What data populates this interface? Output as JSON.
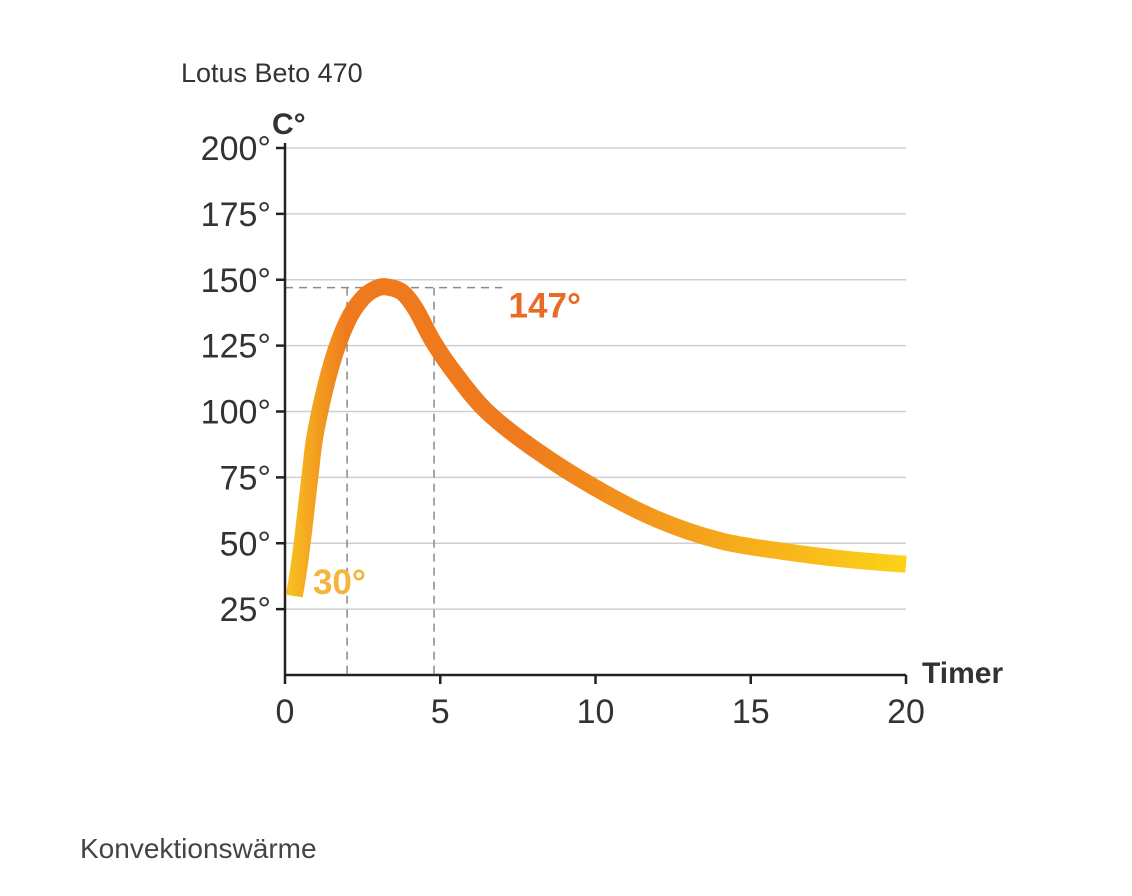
{
  "caption": "Konvektionswärme",
  "colors": {
    "axis": "#222222",
    "grid": "#cfcfcf",
    "guide": "#8a8a8a",
    "curve_start": "#f8c421",
    "curve_peak": "#ee7a1d",
    "curve_end": "#fcd219",
    "peak_label": "#e96a25",
    "start_label": "#f4b53a",
    "text": "#333333"
  },
  "chart_data": {
    "type": "line",
    "title": "Lotus Beto 470",
    "xlabel": "Timer",
    "ylabel": "C°",
    "xlim": [
      0,
      20
    ],
    "ylim": [
      0,
      200
    ],
    "x_ticks": [
      0,
      5,
      10,
      15,
      20
    ],
    "x_tick_labels": [
      "0",
      "5",
      "10",
      "15",
      "20"
    ],
    "y_ticks": [
      25,
      50,
      75,
      100,
      125,
      150,
      175,
      200
    ],
    "y_tick_labels": [
      "25°",
      "50°",
      "75°",
      "100°",
      "125°",
      "150°",
      "175°",
      "200°"
    ],
    "grid": true,
    "x": [
      0.3,
      0.5,
      0.8,
      1.0,
      1.5,
      2.0,
      2.5,
      3.0,
      3.4,
      3.8,
      4.2,
      4.8,
      5.5,
      6.5,
      8.0,
      10.0,
      12.0,
      14.0,
      16.0,
      18.0,
      20.0
    ],
    "y": [
      30,
      45,
      75,
      93,
      118,
      134,
      143,
      147,
      147,
      145,
      139,
      126,
      114,
      100,
      86,
      71,
      59,
      51,
      47,
      44,
      42
    ],
    "annotations": [
      {
        "text": "147°",
        "x": 7.2,
        "y": 141,
        "kind": "peak"
      },
      {
        "text": "30°",
        "x": 0.9,
        "y": 36,
        "kind": "start"
      }
    ],
    "guides": {
      "peak_y": 147,
      "x_values": [
        2.0,
        4.8
      ],
      "h_end_x": 7.0
    }
  }
}
